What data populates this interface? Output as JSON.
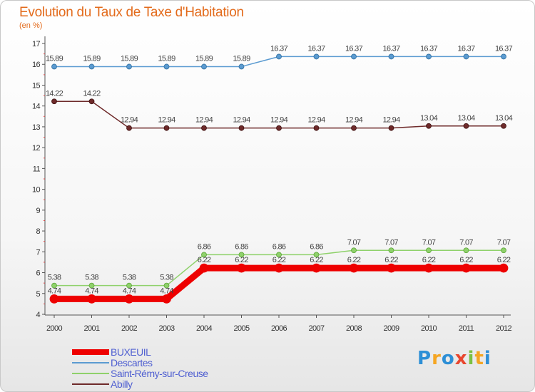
{
  "chart_data": {
    "type": "line",
    "title": "Evolution du Taux de Taxe d'Habitation",
    "subtitle": "(en %)",
    "categories": [
      "2000",
      "2001",
      "2002",
      "2003",
      "2004",
      "2005",
      "2006",
      "2007",
      "2008",
      "2009",
      "2010",
      "2011",
      "2012"
    ],
    "ylim": [
      4,
      17
    ],
    "yticks": [
      4,
      5,
      6,
      7,
      8,
      9,
      10,
      11,
      12,
      13,
      14,
      15,
      16,
      17
    ],
    "grid": false,
    "legend_position": "bottom-left",
    "series": [
      {
        "name": "BUXEUIL",
        "color": "#ee0000",
        "values": [
          4.74,
          4.74,
          4.74,
          4.74,
          6.22,
          6.22,
          6.22,
          6.22,
          6.22,
          6.22,
          6.22,
          6.22,
          6.22
        ]
      },
      {
        "name": "Descartes",
        "color": "#5b9bd1",
        "values": [
          15.89,
          15.89,
          15.89,
          15.89,
          15.89,
          15.89,
          16.37,
          16.37,
          16.37,
          16.37,
          16.37,
          16.37,
          16.37
        ]
      },
      {
        "name": "Saint-Rémy-sur-Creuse",
        "color": "#8fd16b",
        "values": [
          5.38,
          5.38,
          5.38,
          5.38,
          6.86,
          6.86,
          6.86,
          6.86,
          7.07,
          7.07,
          7.07,
          7.07,
          7.07
        ]
      },
      {
        "name": "Abilly",
        "color": "#6e2a2a",
        "values": [
          14.22,
          14.22,
          12.94,
          12.94,
          12.94,
          12.94,
          12.94,
          12.94,
          12.94,
          12.94,
          13.04,
          13.04,
          13.04
        ]
      }
    ]
  },
  "logo": {
    "text": "Proxiti",
    "letters": [
      {
        "ch": "P",
        "color": "#2d8fd6"
      },
      {
        "ch": "r",
        "color": "#f5a623"
      },
      {
        "ch": "o",
        "color": "#2d8fd6"
      },
      {
        "ch": "x",
        "color": "#e8462e"
      },
      {
        "ch": "i",
        "color": "#7bc143"
      },
      {
        "ch": "t",
        "color": "#f5a623"
      },
      {
        "ch": "i",
        "color": "#2d8fd6"
      }
    ]
  }
}
